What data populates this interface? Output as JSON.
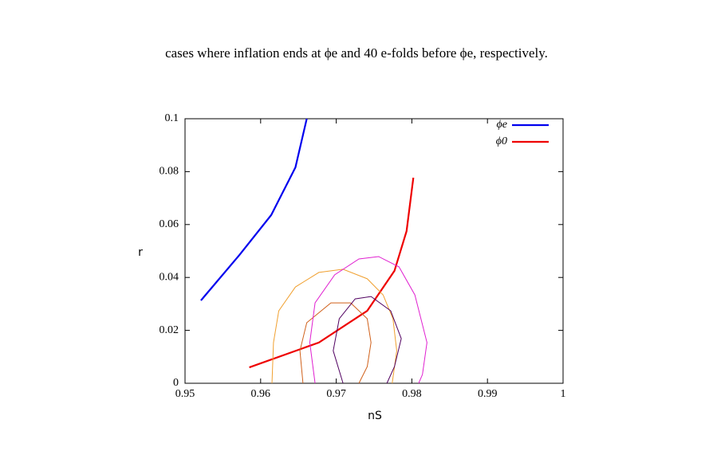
{
  "caption": "cases where inflation ends at ϕe and 40 e-folds before ϕe, respectively.",
  "chart_data": {
    "type": "line",
    "xlabel": "nS",
    "ylabel": "r",
    "xlim": [
      0.95,
      1
    ],
    "ylim": [
      0,
      0.1
    ],
    "xticks": [
      0.95,
      0.96,
      0.97,
      0.98,
      0.99,
      1
    ],
    "yticks": [
      0,
      0.02,
      0.04,
      0.06,
      0.08,
      0.1
    ],
    "legend": "top-right",
    "series": [
      {
        "name": "ϕe",
        "color": "#0000ee",
        "width": 2.2,
        "x": [
          0.9521,
          0.9572,
          0.9614,
          0.9646,
          0.9661
        ],
        "y": [
          0.0313,
          0.0485,
          0.0636,
          0.0816,
          0.1
        ]
      },
      {
        "name": "ϕ0",
        "color": "#ee0000",
        "width": 2.2,
        "x": [
          0.9585,
          0.9677,
          0.9741,
          0.9777,
          0.9793,
          0.9802
        ],
        "y": [
          0.006,
          0.0154,
          0.0274,
          0.0425,
          0.0575,
          0.0777
        ]
      },
      {
        "color": "#f0a030",
        "width": 1,
        "x": [
          0.9615,
          0.9617,
          0.9624,
          0.9646,
          0.9677,
          0.9709,
          0.9741,
          0.9762,
          0.9775,
          0.978,
          0.9774
        ],
        "y": [
          0,
          0.0154,
          0.0274,
          0.0364,
          0.0419,
          0.0431,
          0.0395,
          0.0334,
          0.0244,
          0.0123,
          0
        ]
      },
      {
        "color": "#d0601a",
        "width": 1,
        "x": [
          0.9656,
          0.9652,
          0.9661,
          0.9693,
          0.9719,
          0.9741,
          0.9746,
          0.9741,
          0.973
        ],
        "y": [
          0,
          0.0123,
          0.0229,
          0.0304,
          0.0304,
          0.0244,
          0.0154,
          0.0063,
          0
        ]
      },
      {
        "color": "#e020d0",
        "width": 1,
        "x": [
          0.9672,
          0.9665,
          0.9672,
          0.9698,
          0.973,
          0.9756,
          0.9783,
          0.9804,
          0.982,
          0.9814,
          0.9809
        ],
        "y": [
          0,
          0.0154,
          0.0304,
          0.041,
          0.047,
          0.0479,
          0.044,
          0.0334,
          0.0154,
          0.0033,
          0
        ]
      },
      {
        "color": "#500060",
        "width": 1,
        "x": [
          0.9709,
          0.9696,
          0.9704,
          0.9725,
          0.9746,
          0.9772,
          0.9786,
          0.9777,
          0.9767
        ],
        "y": [
          0,
          0.0123,
          0.0244,
          0.0319,
          0.0328,
          0.0274,
          0.0169,
          0.0063,
          0
        ]
      }
    ]
  }
}
